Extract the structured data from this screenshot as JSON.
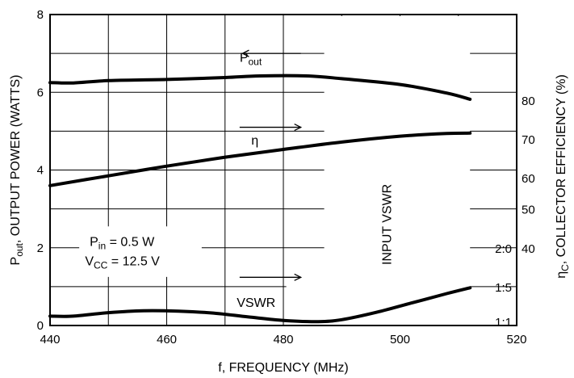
{
  "chart_data": {
    "type": "line",
    "xlabel": "f, FREQUENCY (MHz)",
    "xlim": [
      440,
      520
    ],
    "ylim": [
      0,
      8
    ],
    "x_ticks": [
      "440",
      "460",
      "480",
      "500",
      "520"
    ],
    "y_ticks": [
      "0",
      "2",
      "4",
      "6",
      "8"
    ],
    "left_axis": {
      "main": "P",
      "sub": "out",
      "rest": ", OUTPUT POWER (WATTS)"
    },
    "right_axis": {
      "main": "η",
      "sub": "C",
      "rest": ", COLLECTOR EFFICIENCY (%)"
    },
    "right_ticks": [
      {
        "label": "80",
        "left_value": 5.8
      },
      {
        "label": "70",
        "left_value": 4.8
      },
      {
        "label": "60",
        "left_value": 3.8
      },
      {
        "label": "50",
        "left_value": 3.0
      },
      {
        "label": "40",
        "left_value": 2.0
      }
    ],
    "vswr_axis": {
      "title": "INPUT VSWR",
      "ticks": [
        {
          "label": "2:0",
          "left_value": 2.0
        },
        {
          "label": "1:5",
          "left_value": 1.0
        },
        {
          "label": "1:1",
          "left_value": 0.1
        }
      ]
    },
    "series": [
      {
        "name": "Pout",
        "label_main": "P",
        "label_sub": "out",
        "x": [
          440,
          444,
          450,
          460,
          470,
          476,
          484,
          490,
          500,
          508,
          512
        ],
        "y": [
          6.25,
          6.24,
          6.3,
          6.33,
          6.38,
          6.42,
          6.42,
          6.35,
          6.2,
          5.98,
          5.82
        ]
      },
      {
        "name": "η",
        "label_main": "η",
        "x": [
          440,
          450,
          460,
          470,
          480,
          490,
          500,
          508,
          512
        ],
        "y": [
          3.6,
          3.85,
          4.1,
          4.33,
          4.53,
          4.72,
          4.87,
          4.94,
          4.95
        ]
      },
      {
        "name": "VSWR",
        "label_main": "VSWR",
        "x": [
          440,
          444,
          450,
          456,
          462,
          468,
          474,
          480,
          486,
          490,
          496,
          502,
          508,
          512
        ],
        "y": [
          0.24,
          0.24,
          0.33,
          0.38,
          0.37,
          0.32,
          0.22,
          0.13,
          0.1,
          0.15,
          0.34,
          0.58,
          0.82,
          0.97
        ]
      }
    ],
    "annotations": {
      "pin_main": "P",
      "pin_sub": "in",
      "pin_rest": " = 0.5 W",
      "vcc_main": "V",
      "vcc_sub": "CC",
      "vcc_rest": " = 12.5 V"
    },
    "grid": true
  }
}
